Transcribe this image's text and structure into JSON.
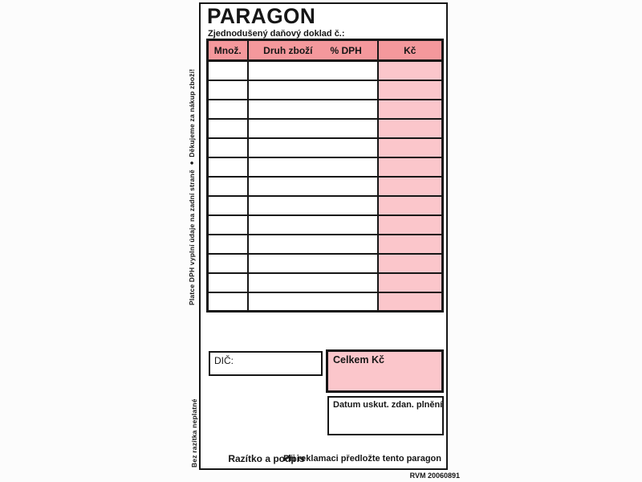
{
  "document": {
    "title": "PARAGON",
    "subtitle": "Zjednodušený daňový doklad č.:",
    "print_code": "RVM 20060891"
  },
  "side_notes": {
    "payer_note": "Platce DPH vyplní údaje na zadní straně ● Děkujeme za nákup zboží!",
    "validity_note": "Bez razítka neplatné"
  },
  "table": {
    "col_qty": "Množ.",
    "col_goods": "Druh zboží",
    "col_vat": "% DPH",
    "col_price": "Kč",
    "empty_rows": 13
  },
  "fields": {
    "tax_id_label": "DIČ:",
    "total_label": "Celkem Kč",
    "date_label": "Datum uskut. zdan. plnění"
  },
  "footer": {
    "stamp_signature_label": "Razítko a podpis",
    "claim_note": "Při reklamaci předložte tento paragon"
  },
  "colors": {
    "header_pink": "#f4989c",
    "cell_pink": "#fbc6cb",
    "ink": "#161616"
  }
}
